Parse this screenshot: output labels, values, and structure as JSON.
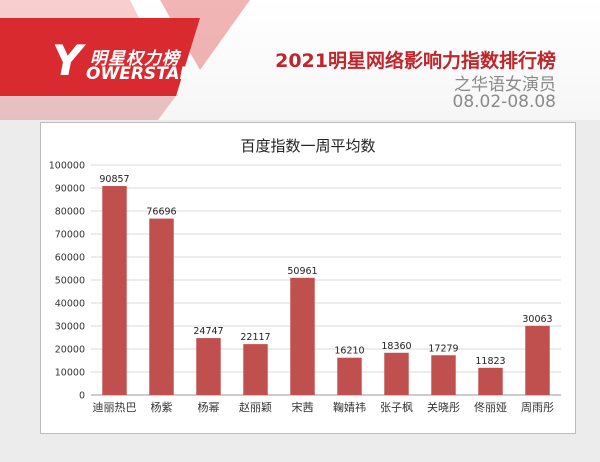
{
  "brand": {
    "logo_cn": "明星权力榜",
    "logo_y": "Y",
    "logo_en": "OWERSTAR"
  },
  "header": {
    "title": "2021明星网络影响力指数排行榜",
    "subtitle": "之华语女演员",
    "date_range": "08.02-08.08"
  },
  "colors": {
    "bar": "#c0504d",
    "brand_red": "#c0272d",
    "gridline": "#d9d9d9"
  },
  "chart_data": {
    "type": "bar",
    "title": "百度指数一周平均数",
    "xlabel": "",
    "ylabel": "",
    "ylim": [
      0,
      100000
    ],
    "yticks": [
      0,
      10000,
      20000,
      30000,
      40000,
      50000,
      60000,
      70000,
      80000,
      90000,
      100000
    ],
    "grid": true,
    "categories": [
      "迪丽热巴",
      "杨紫",
      "杨幂",
      "赵丽颖",
      "宋茜",
      "鞠婧祎",
      "张子枫",
      "关晓彤",
      "佟丽娅",
      "周雨彤"
    ],
    "values": [
      90857,
      76696,
      24747,
      22117,
      50961,
      16210,
      18360,
      17279,
      11823,
      30063
    ]
  }
}
